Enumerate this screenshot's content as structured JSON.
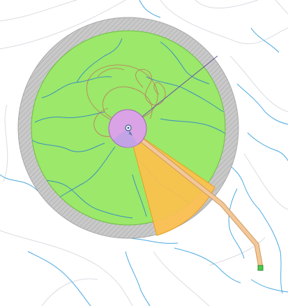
{
  "colors": {
    "background": "#ffffff",
    "outer_ring": "#c8c8c8",
    "outer_ring_edge": "#a8a8a8",
    "coverage_zone": "#9be86a",
    "coverage_edge": "#6fbd45",
    "inner_zone": "#d9a3e6",
    "inner_zone_edge": "#a06ab0",
    "sector": "#ffc04d",
    "sector_edge": "#e8a020",
    "corridor": "#f2c89a",
    "corridor_edge": "#d19a5c",
    "river": "#4aa9e0",
    "road": "#dadce2",
    "flight_track": "#c26a5e",
    "bearing_line": "#6a5aa0",
    "waypoint": "#4cc94c"
  },
  "icons": {
    "center_marker": "target-marker-icon",
    "waypoint_marker": "waypoint-square-icon"
  }
}
